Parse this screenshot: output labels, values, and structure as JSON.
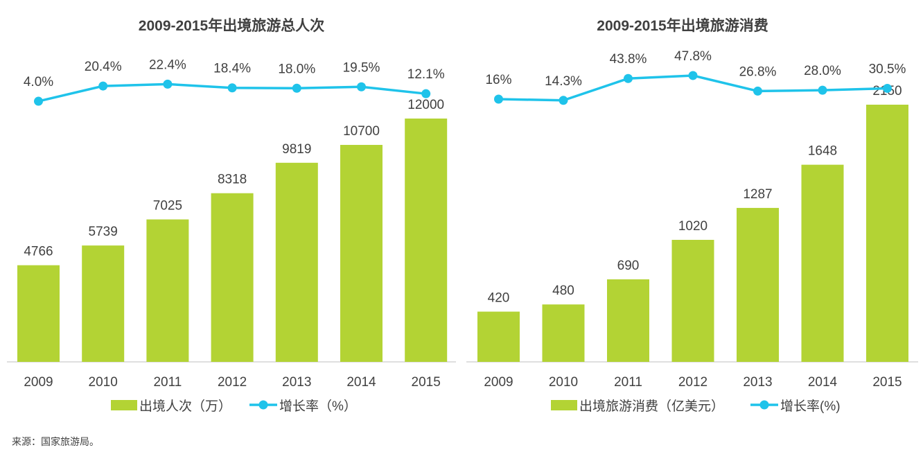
{
  "colors": {
    "bar": "#b3d334",
    "line": "#1fc3ea",
    "axis": "#bfbfbf"
  },
  "source": "来源：国家旅游局。",
  "chart_data": [
    {
      "type": "bar",
      "title": "2009-2015年出境旅游总人次",
      "categories": [
        "2009",
        "2010",
        "2011",
        "2012",
        "2013",
        "2014",
        "2015"
      ],
      "series": [
        {
          "name": "出境人次（万）",
          "type": "bar",
          "values": [
            4766,
            5739,
            7025,
            8318,
            9819,
            10700,
            12000
          ]
        },
        {
          "name": "增长率（%）",
          "type": "line",
          "values": [
            4.0,
            20.4,
            22.4,
            18.4,
            18.0,
            19.5,
            12.1
          ],
          "labels": [
            "4.0%",
            "20.4%",
            "22.4%",
            "18.4%",
            "18.0%",
            "19.5%",
            "12.1%"
          ]
        }
      ],
      "legend": "bottom"
    },
    {
      "type": "bar",
      "title": "2009-2015年出境旅游消费",
      "categories": [
        "2009",
        "2010",
        "2011",
        "2012",
        "2013",
        "2014",
        "2015"
      ],
      "series": [
        {
          "name": "出境旅游消费（亿美元）",
          "type": "bar",
          "values": [
            420,
            480,
            690,
            1020,
            1287,
            1648,
            2150
          ]
        },
        {
          "name": "增长率(%)",
          "type": "line",
          "values": [
            16,
            14.3,
            43.8,
            47.8,
            26.8,
            28.0,
            30.5
          ],
          "labels": [
            "16%",
            "14.3%",
            "43.8%",
            "47.8%",
            "26.8%",
            "28.0%",
            "30.5%"
          ]
        }
      ],
      "legend": "bottom"
    }
  ]
}
